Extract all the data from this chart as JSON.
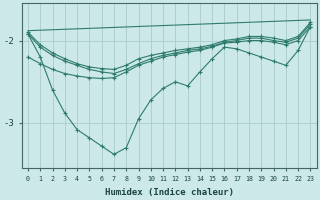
{
  "xlabel": "Humidex (Indice chaleur)",
  "background_color": "#cce8e8",
  "grid_color": "#aacccc",
  "line_color": "#2e7b6e",
  "xlim": [
    -0.5,
    23.5
  ],
  "ylim": [
    -3.55,
    -1.55
  ],
  "yticks": [
    -3,
    -2
  ],
  "xticks": [
    0,
    1,
    2,
    3,
    4,
    5,
    6,
    7,
    8,
    9,
    10,
    11,
    12,
    13,
    14,
    15,
    16,
    17,
    18,
    19,
    20,
    21,
    22,
    23
  ],
  "lines": [
    {
      "x": [
        0,
        23
      ],
      "y": [
        -1.88,
        -1.75
      ],
      "has_markers": false
    },
    {
      "x": [
        0,
        1,
        2,
        3,
        4,
        5,
        6,
        7,
        8,
        9,
        10,
        11,
        12,
        13,
        14,
        15,
        16,
        17,
        18,
        19,
        20,
        21,
        22,
        23
      ],
      "y": [
        -1.9,
        -2.05,
        -2.15,
        -2.22,
        -2.28,
        -2.32,
        -2.34,
        -2.35,
        -2.3,
        -2.22,
        -2.18,
        -2.15,
        -2.12,
        -2.1,
        -2.08,
        -2.05,
        -2.0,
        -1.98,
        -1.95,
        -1.95,
        -1.97,
        -2.0,
        -1.95,
        -1.78
      ],
      "has_markers": true
    },
    {
      "x": [
        0,
        1,
        2,
        3,
        4,
        5,
        6,
        7,
        8,
        9,
        10,
        11,
        12,
        13,
        14,
        15,
        16,
        17,
        18,
        19,
        20,
        21,
        22,
        23
      ],
      "y": [
        -1.92,
        -2.08,
        -2.18,
        -2.25,
        -2.3,
        -2.35,
        -2.38,
        -2.4,
        -2.35,
        -2.28,
        -2.22,
        -2.18,
        -2.15,
        -2.12,
        -2.1,
        -2.07,
        -2.02,
        -2.0,
        -1.97,
        -1.97,
        -2.0,
        -2.02,
        -1.97,
        -1.8
      ],
      "has_markers": true
    },
    {
      "x": [
        0,
        1,
        2,
        3,
        4,
        5,
        6,
        7,
        8,
        9,
        10,
        11,
        12,
        13,
        14,
        15,
        16,
        17,
        18,
        19,
        20,
        21,
        22,
        23
      ],
      "y": [
        -2.2,
        -2.28,
        -2.35,
        -2.4,
        -2.43,
        -2.45,
        -2.46,
        -2.45,
        -2.38,
        -2.3,
        -2.25,
        -2.2,
        -2.17,
        -2.14,
        -2.12,
        -2.08,
        -2.03,
        -2.02,
        -2.0,
        -2.0,
        -2.02,
        -2.05,
        -2.0,
        -1.83
      ],
      "has_markers": true
    },
    {
      "x": [
        0,
        1,
        2,
        3,
        4,
        5,
        6,
        7,
        8,
        9,
        10,
        11,
        12,
        13,
        14,
        15,
        16,
        17,
        18,
        19,
        20,
        21,
        22,
        23
      ],
      "y": [
        -1.92,
        -2.2,
        -2.6,
        -2.88,
        -3.08,
        -3.18,
        -3.28,
        -3.38,
        -3.3,
        -2.95,
        -2.72,
        -2.58,
        -2.5,
        -2.55,
        -2.38,
        -2.22,
        -2.08,
        -2.1,
        -2.15,
        -2.2,
        -2.25,
        -2.3,
        -2.12,
        -1.83
      ],
      "has_markers": true
    }
  ]
}
